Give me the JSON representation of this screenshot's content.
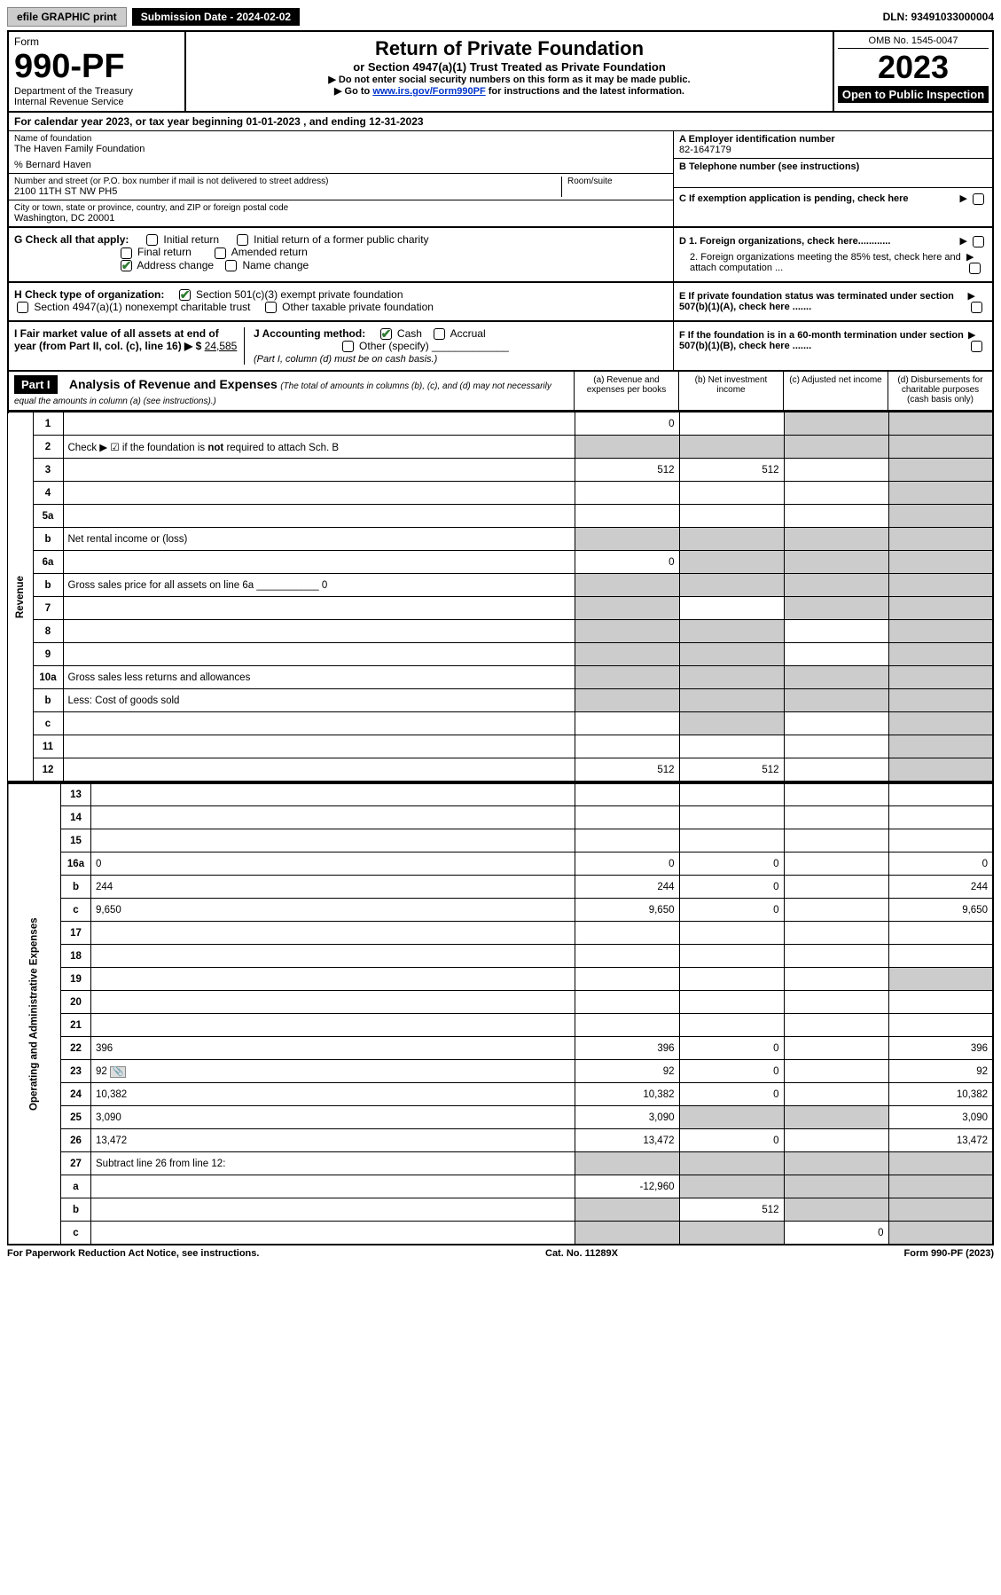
{
  "topbar": {
    "efile": "efile GRAPHIC print",
    "submission": "Submission Date - 2024-02-02",
    "dln": "DLN: 93491033000004"
  },
  "header": {
    "form_label": "Form",
    "form_number": "990-PF",
    "dept": "Department of the Treasury",
    "irs": "Internal Revenue Service",
    "title": "Return of Private Foundation",
    "subtitle": "or Section 4947(a)(1) Trust Treated as Private Foundation",
    "instr1": "▶ Do not enter social security numbers on this form as it may be made public.",
    "instr2_pre": "▶ Go to ",
    "instr2_link": "www.irs.gov/Form990PF",
    "instr2_post": " for instructions and the latest information.",
    "omb": "OMB No. 1545-0047",
    "year": "2023",
    "open": "Open to Public Inspection"
  },
  "calendar": "For calendar year 2023, or tax year beginning 01-01-2023                          , and ending 12-31-2023",
  "entity": {
    "name_label": "Name of foundation",
    "name": "The Haven Family Foundation",
    "care_of": "% Bernard Haven",
    "addr_label": "Number and street (or P.O. box number if mail is not delivered to street address)",
    "addr": "2100 11TH ST NW PH5",
    "room_label": "Room/suite",
    "city_label": "City or town, state or province, country, and ZIP or foreign postal code",
    "city": "Washington, DC  20001",
    "ein_label": "A Employer identification number",
    "ein": "82-1647179",
    "phone_label": "B Telephone number (see instructions)",
    "pending_label": "C If exemption application is pending, check here"
  },
  "checks": {
    "g_label": "G Check all that apply:",
    "initial": "Initial return",
    "initial_former": "Initial return of a former public charity",
    "final": "Final return",
    "amended": "Amended return",
    "address": "Address change",
    "name_change": "Name change",
    "h_label": "H Check type of organization:",
    "h_501c3": "Section 501(c)(3) exempt private foundation",
    "h_4947": "Section 4947(a)(1) nonexempt charitable trust",
    "h_other": "Other taxable private foundation",
    "i_label": "I Fair market value of all assets at end of year (from Part II, col. (c), line 16) ▶ $",
    "i_value": "24,585",
    "j_label": "J Accounting method:",
    "j_cash": "Cash",
    "j_accrual": "Accrual",
    "j_other": "Other (specify)",
    "j_note": "(Part I, column (d) must be on cash basis.)",
    "d1": "D 1. Foreign organizations, check here............",
    "d2": "2. Foreign organizations meeting the 85% test, check here and attach computation ...",
    "e": "E  If private foundation status was terminated under section 507(b)(1)(A), check here .......",
    "f": "F  If the foundation is in a 60-month termination under section 507(b)(1)(B), check here .......",
    "arrow": "▶"
  },
  "part1": {
    "label": "Part I",
    "title": "Analysis of Revenue and Expenses",
    "note": "(The total of amounts in columns (b), (c), and (d) may not necessarily equal the amounts in column (a) (see instructions).)",
    "col_a": "(a)   Revenue and expenses per books",
    "col_b": "(b)   Net investment income",
    "col_c": "(c)   Adjusted net income",
    "col_d": "(d)   Disbursements for charitable purposes (cash basis only)"
  },
  "sides": {
    "revenue": "Revenue",
    "expenses": "Operating and Administrative Expenses"
  },
  "rows": [
    {
      "n": "1",
      "d": "",
      "a": "0",
      "b": "",
      "c": "",
      "gray": [
        "c",
        "d"
      ]
    },
    {
      "n": "2",
      "d": "Check ▶ ☑ if the foundation is <b>not</b> required to attach Sch. B",
      "span": true
    },
    {
      "n": "3",
      "d": "",
      "a": "512",
      "b": "512",
      "c": "",
      "gray": [
        "d"
      ]
    },
    {
      "n": "4",
      "d": "",
      "a": "",
      "b": "",
      "c": "",
      "gray": [
        "d"
      ]
    },
    {
      "n": "5a",
      "d": "",
      "a": "",
      "b": "",
      "c": "",
      "gray": [
        "d"
      ]
    },
    {
      "n": "b",
      "d": "Net rental income or (loss)",
      "span": true
    },
    {
      "n": "6a",
      "d": "",
      "a": "0",
      "b": "",
      "c": "",
      "gray": [
        "b",
        "c",
        "d"
      ]
    },
    {
      "n": "b",
      "d": "Gross sales price for all assets on line 6a ___________ 0",
      "span": true
    },
    {
      "n": "7",
      "d": "",
      "a": "",
      "b": "",
      "c": "",
      "gray": [
        "a",
        "c",
        "d"
      ]
    },
    {
      "n": "8",
      "d": "",
      "a": "",
      "b": "",
      "c": "",
      "gray": [
        "a",
        "b",
        "d"
      ]
    },
    {
      "n": "9",
      "d": "",
      "a": "",
      "b": "",
      "c": "",
      "gray": [
        "a",
        "b",
        "d"
      ]
    },
    {
      "n": "10a",
      "d": "Gross sales less returns and allowances",
      "span": true
    },
    {
      "n": "b",
      "d": "Less: Cost of goods sold",
      "span": true
    },
    {
      "n": "c",
      "d": "",
      "a": "",
      "b": "",
      "c": "",
      "gray": [
        "b",
        "d"
      ]
    },
    {
      "n": "11",
      "d": "",
      "a": "",
      "b": "",
      "c": "",
      "gray": [
        "d"
      ]
    },
    {
      "n": "12",
      "d": "",
      "a": "512",
      "b": "512",
      "c": "",
      "gray": [
        "d"
      ]
    }
  ],
  "exp_rows": [
    {
      "n": "13",
      "d": "",
      "a": "",
      "b": "",
      "c": ""
    },
    {
      "n": "14",
      "d": "",
      "a": "",
      "b": "",
      "c": ""
    },
    {
      "n": "15",
      "d": "",
      "a": "",
      "b": "",
      "c": ""
    },
    {
      "n": "16a",
      "d": "0",
      "a": "0",
      "b": "0",
      "c": ""
    },
    {
      "n": "b",
      "d": "244",
      "a": "244",
      "b": "0",
      "c": ""
    },
    {
      "n": "c",
      "d": "9,650",
      "a": "9,650",
      "b": "0",
      "c": ""
    },
    {
      "n": "17",
      "d": "",
      "a": "",
      "b": "",
      "c": ""
    },
    {
      "n": "18",
      "d": "",
      "a": "",
      "b": "",
      "c": ""
    },
    {
      "n": "19",
      "d": "",
      "a": "",
      "b": "",
      "c": "",
      "gray": [
        "d"
      ]
    },
    {
      "n": "20",
      "d": "",
      "a": "",
      "b": "",
      "c": ""
    },
    {
      "n": "21",
      "d": "",
      "a": "",
      "b": "",
      "c": ""
    },
    {
      "n": "22",
      "d": "396",
      "a": "396",
      "b": "0",
      "c": ""
    },
    {
      "n": "23",
      "d": "92",
      "a": "92",
      "b": "0",
      "c": "",
      "icon": true
    },
    {
      "n": "24",
      "d": "10,382",
      "a": "10,382",
      "b": "0",
      "c": ""
    },
    {
      "n": "25",
      "d": "3,090",
      "a": "3,090",
      "b": "",
      "c": "",
      "gray": [
        "b",
        "c"
      ]
    },
    {
      "n": "26",
      "d": "13,472",
      "a": "13,472",
      "b": "0",
      "c": ""
    },
    {
      "n": "27",
      "d": "Subtract line 26 from line 12:",
      "span": true,
      "gray_all": true
    },
    {
      "n": "a",
      "d": "",
      "a": "-12,960",
      "b": "",
      "c": "",
      "gray": [
        "b",
        "c",
        "d"
      ]
    },
    {
      "n": "b",
      "d": "",
      "a": "",
      "b": "512",
      "c": "",
      "gray": [
        "a",
        "c",
        "d"
      ]
    },
    {
      "n": "c",
      "d": "",
      "a": "",
      "b": "",
      "c": "0",
      "gray": [
        "a",
        "b",
        "d"
      ]
    }
  ],
  "footer": {
    "left": "For Paperwork Reduction Act Notice, see instructions.",
    "mid": "Cat. No. 11289X",
    "right": "Form 990-PF (2023)"
  },
  "colors": {
    "black": "#000000",
    "gray_cell": "#cccccc",
    "link": "#0033cc",
    "check_green": "#2e7d32"
  }
}
